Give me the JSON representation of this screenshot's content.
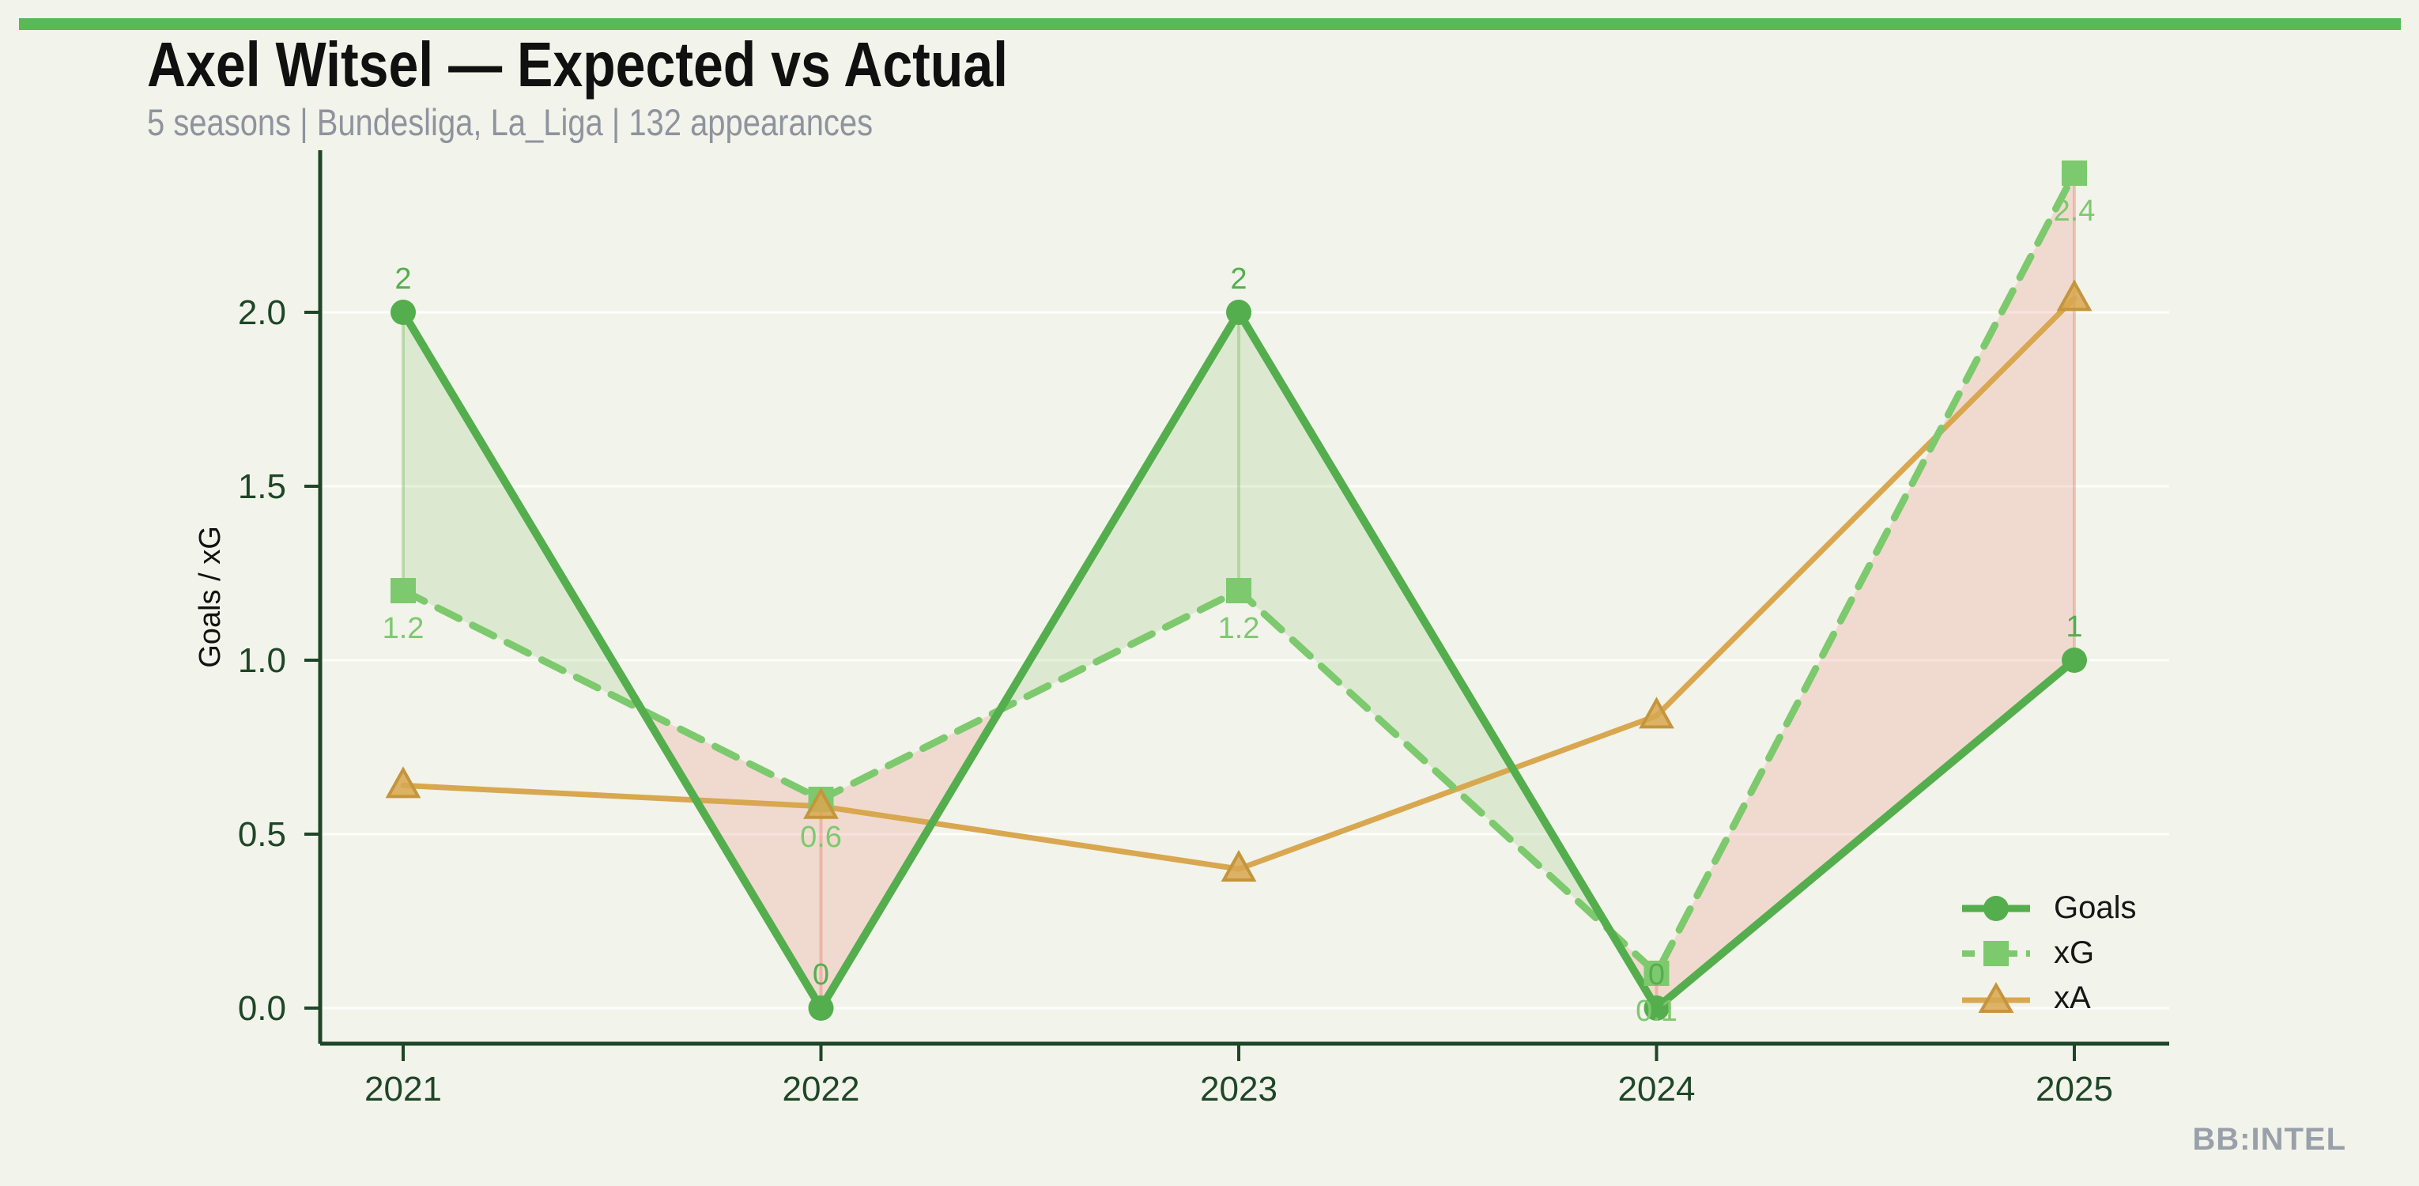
{
  "page": {
    "watermark": "BB:INTEL"
  },
  "header": {
    "title": "Axel Witsel — Expected vs Actual",
    "subtitle": "5 seasons | Bundesliga, La_Liga | 132 appearances"
  },
  "colors": {
    "background": "#f2f3ea",
    "accent_bar": "#58b957",
    "axis": "#1e4628",
    "title_text": "#101010",
    "subtitle_text": "#8e939e",
    "watermark_text": "#9aa0aa",
    "grid": "rgba(255,255,255,0.8)",
    "fill_goals_above_xg": "rgba(105,180,75,0.16)",
    "fill_xg_above_goals": "rgba(231,93,76,0.17)",
    "diff_line_green": "rgba(105,180,75,0.35)",
    "diff_line_pink": "rgba(231,93,76,0.30)"
  },
  "chart_data": {
    "type": "line",
    "title": "Axel Witsel — Expected vs Actual",
    "subtitle": "5 seasons | Bundesliga, La_Liga | 132 appearances",
    "categories": [
      "2021",
      "2022",
      "2023",
      "2024",
      "2025"
    ],
    "series": [
      {
        "name": "Goals",
        "values": [
          2,
          0,
          2,
          0,
          1
        ],
        "point_labels": [
          "2",
          "0",
          "2",
          "0",
          "1"
        ],
        "color": "#54ae4e",
        "marker": "circle",
        "line_style": "solid"
      },
      {
        "name": "xG",
        "values": [
          1.2,
          0.6,
          1.2,
          0.1,
          2.4
        ],
        "point_labels": [
          "1.2",
          "0.6",
          "1.2",
          "0.1",
          "2.4"
        ],
        "color": "#7dc96e",
        "marker": "square",
        "line_style": "dashed"
      },
      {
        "name": "xA",
        "values": [
          0.64,
          0.58,
          0.4,
          0.84,
          2.04
        ],
        "point_labels": [],
        "color": "#d8a74f",
        "marker": "triangle",
        "marker_edge": "#c4953c",
        "line_style": "solid"
      }
    ],
    "xlabel": "",
    "ylabel": "Goals / xG",
    "yticks": [
      "0.0",
      "0.5",
      "1.0",
      "1.5",
      "2.0"
    ],
    "ylim": [
      0,
      2.5
    ],
    "grid": true,
    "legend_position": "lower right",
    "legend_entries": [
      "Goals",
      "xG",
      "xA"
    ],
    "fill_between": "Goals vs xG (green where Goals > xG, pink where xG > Goals)"
  }
}
